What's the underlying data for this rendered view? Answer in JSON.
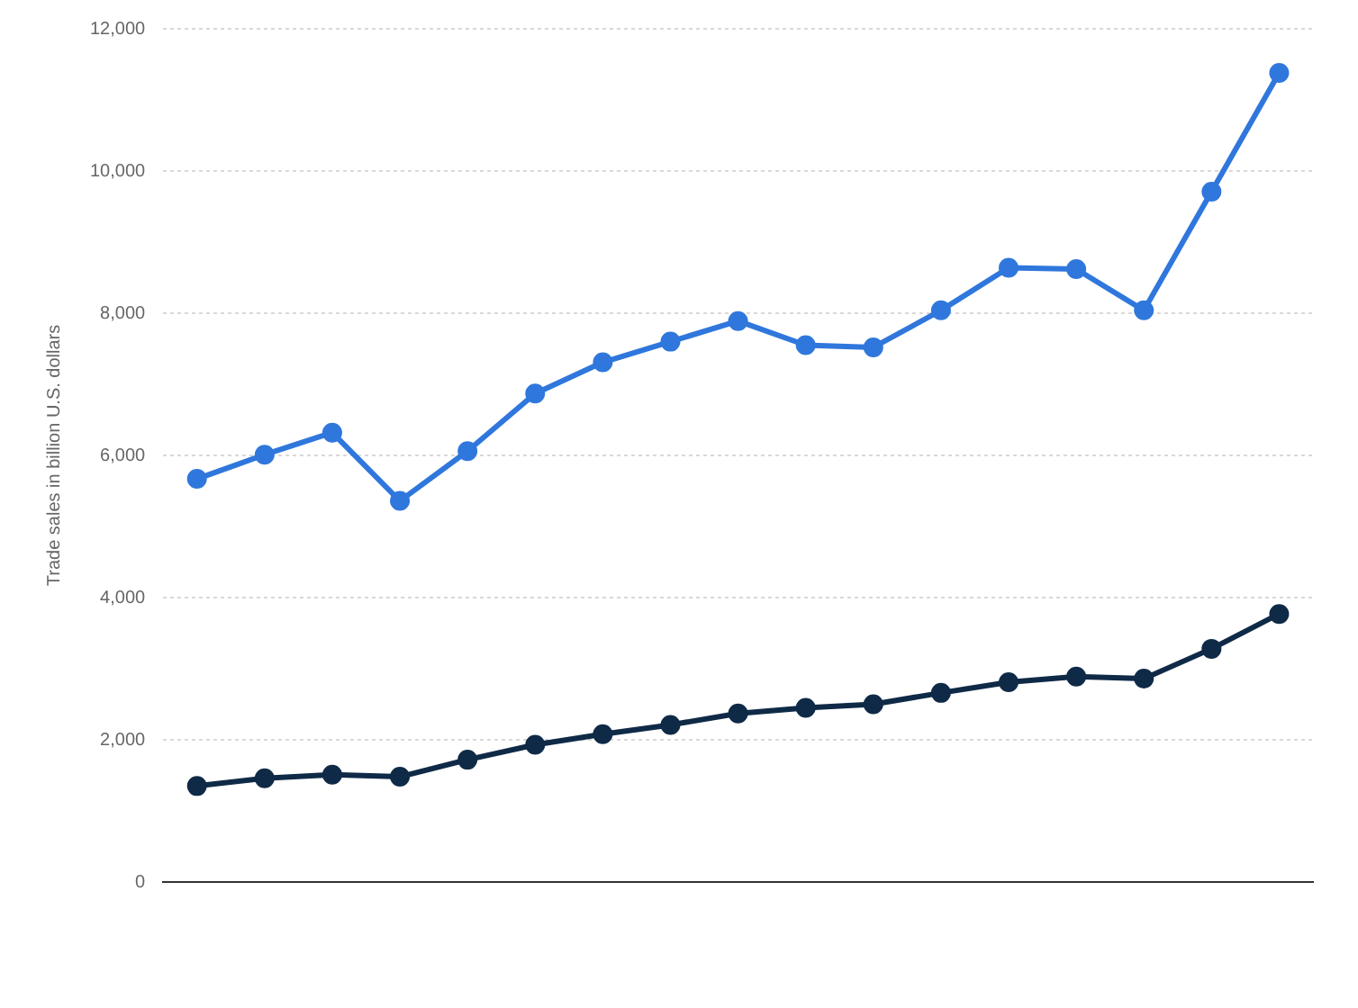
{
  "chart_data": {
    "type": "line",
    "ylabel": "Trade sales in billion U.S. dollars",
    "categories": [
      null,
      null,
      null,
      null,
      null,
      null,
      null,
      null,
      null,
      null,
      null,
      null,
      null,
      null,
      null,
      null,
      null
    ],
    "series": [
      {
        "color": "#2f77dc",
        "values": [
          5670,
          6010,
          6320,
          5360,
          6060,
          6870,
          7310,
          7600,
          7890,
          7550,
          7520,
          8040,
          8640,
          8620,
          8040,
          9710,
          11380
        ]
      },
      {
        "color": "#0f2a47",
        "values": [
          1350,
          1460,
          1510,
          1480,
          1720,
          1930,
          2080,
          2210,
          2370,
          2450,
          2500,
          2660,
          2810,
          2890,
          2860,
          3280,
          3770
        ]
      }
    ],
    "ylim": [
      0,
      12000
    ],
    "yticks": [
      {
        "value": 0,
        "label": "0"
      },
      {
        "value": 2000,
        "label": "2,000"
      },
      {
        "value": 4000,
        "label": "4,000"
      },
      {
        "value": 6000,
        "label": "6,000"
      },
      {
        "value": 8000,
        "label": "8,000"
      },
      {
        "value": 10000,
        "label": "10,000"
      },
      {
        "value": 12000,
        "label": "12,000"
      }
    ],
    "grid": "y",
    "tick_labels": "y",
    "marker": "circle",
    "line_style": "solid",
    "legend": false
  }
}
